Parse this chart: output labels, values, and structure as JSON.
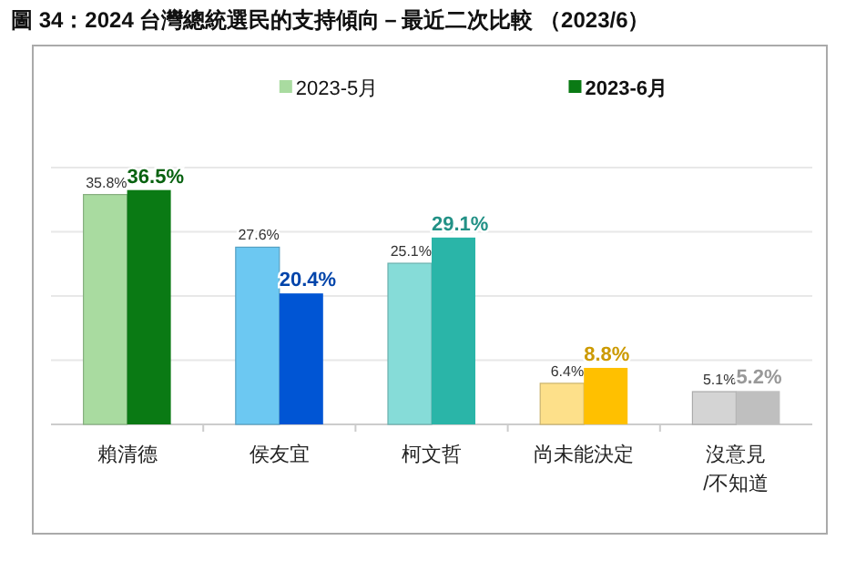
{
  "chart_data": {
    "type": "bar",
    "title": "圖 34：2024 台灣總統選民的支持傾向－最近二次比較 （2023/6）",
    "categories": [
      "賴清德",
      "侯友宜",
      "柯文哲",
      "尚未能決定",
      "沒意見\n/不知道"
    ],
    "series": [
      {
        "name": "2023-5月",
        "color": "#a9dba0",
        "colors": [
          "#a9dba0",
          "#6cc8f2",
          "#86dcd8",
          "#fde08a",
          "#d4d4d4"
        ],
        "values": [
          35.8,
          27.6,
          25.1,
          6.4,
          5.1
        ],
        "value_labels": [
          "35.8%",
          "27.6%",
          "25.1%",
          "6.4%",
          "5.1%"
        ]
      },
      {
        "name": "2023-6月",
        "color": "#0a7a14",
        "colors": [
          "#0a7a14",
          "#0055d4",
          "#2ab5a8",
          "#ffc000",
          "#bfbfbf"
        ],
        "values": [
          36.5,
          20.4,
          29.1,
          8.8,
          5.2
        ],
        "value_labels": [
          "36.5%",
          "20.4%",
          "29.1%",
          "8.8%",
          "5.2%"
        ]
      }
    ],
    "ylim": [
      0,
      40
    ],
    "yticks": [
      {
        "value": 10,
        "label": null
      },
      {
        "value": 20,
        "label": null
      },
      {
        "value": 30,
        "label": null
      },
      {
        "value": 40,
        "label": null
      }
    ],
    "grid": "y",
    "legend": "top",
    "tick_labels": "x"
  }
}
